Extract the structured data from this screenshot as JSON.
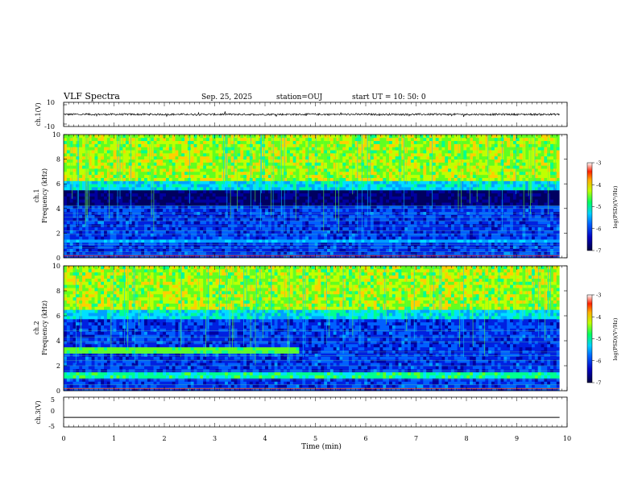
{
  "header": {
    "title": "VLF Spectra",
    "date": "Sep. 25, 2025",
    "station": "station=OUJ",
    "start": "start UT =  10: 50: 0"
  },
  "chart_data": [
    {
      "type": "line",
      "name": "ch1-waveform",
      "ylabel": "ch.1(V)",
      "ylim": [
        -10,
        10
      ],
      "y_ticks": [
        "10",
        "-10"
      ],
      "x_range_min": [
        0,
        9.85
      ],
      "description_values": {
        "baseline": 0,
        "amplitude": 1.5
      }
    },
    {
      "type": "heatmap",
      "name": "ch1-spectrogram",
      "ylabel": "ch.1\nFrequency (kHz)",
      "ylim": [
        0,
        10
      ],
      "y_ticks": [
        "0",
        "2",
        "4",
        "6",
        "8",
        "10"
      ],
      "x_range_min": [
        0,
        9.85
      ],
      "colorbar": {
        "label": "log(PSD)(V²/Hz)",
        "range": [
          -7,
          -3
        ],
        "ticks": [
          "-3",
          "-4",
          "-5",
          "-6",
          "-7"
        ]
      },
      "bands_khz": {
        "noise_floor_top": 6.2,
        "dark_gap": [
          4.2,
          6.2
        ]
      }
    },
    {
      "type": "heatmap",
      "name": "ch2-spectrogram",
      "ylabel": "ch.2\nFrequency (kHz)",
      "ylim": [
        0,
        10
      ],
      "y_ticks": [
        "0",
        "2",
        "4",
        "6",
        "8",
        "10"
      ],
      "x_range_min": [
        0,
        9.85
      ],
      "colorbar": {
        "label": "log(PSD)(V²/Hz)",
        "range": [
          -7,
          -3
        ],
        "ticks": [
          "-3",
          "-4",
          "-5",
          "-6",
          "-7"
        ]
      },
      "bands_khz": {
        "noise_floor_top": 6.5,
        "band_3_3_khz_end_min": 4.65
      }
    },
    {
      "type": "line",
      "name": "ch3-waveform",
      "ylabel": "ch.3(V)",
      "ylim": [
        -5,
        5
      ],
      "y_ticks": [
        "5",
        "0",
        "-5"
      ],
      "x_range_min": [
        0,
        9.85
      ],
      "values_constant": -1.8
    }
  ],
  "x_axis": {
    "label": "Time (min)",
    "ticks": [
      "0",
      "1",
      "2",
      "3",
      "4",
      "5",
      "6",
      "7",
      "8",
      "9",
      "10"
    ],
    "range": [
      0,
      10
    ]
  }
}
